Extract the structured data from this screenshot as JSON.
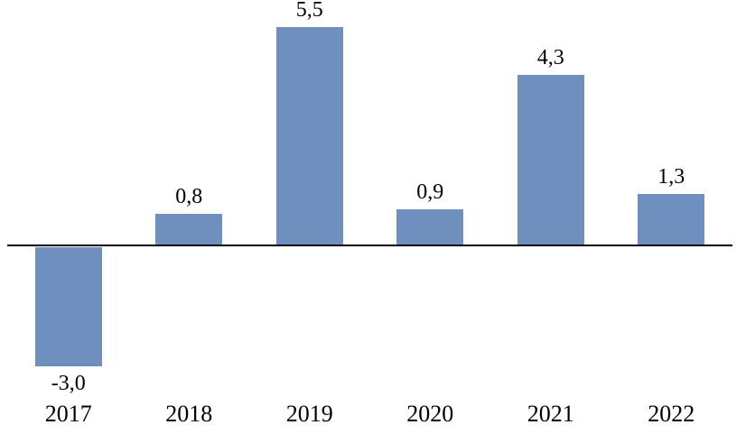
{
  "chart_data": {
    "type": "bar",
    "categories": [
      "2017",
      "2018",
      "2019",
      "2020",
      "2021",
      "2022"
    ],
    "values": [
      -3.0,
      0.8,
      5.5,
      0.9,
      4.3,
      1.3
    ],
    "value_labels": [
      "-3,0",
      "0,8",
      "5,5",
      "0,9",
      "4,3",
      "1,3"
    ],
    "decimal_separator": ",",
    "title": "",
    "xlabel": "",
    "ylabel": "",
    "ylim": [
      -3.5,
      6.0
    ],
    "grid": false,
    "legend": false,
    "bar_color": "#6F8FBF",
    "axis_color": "#000000",
    "text_color": "#000000",
    "background_color": "#FFFFFF"
  }
}
